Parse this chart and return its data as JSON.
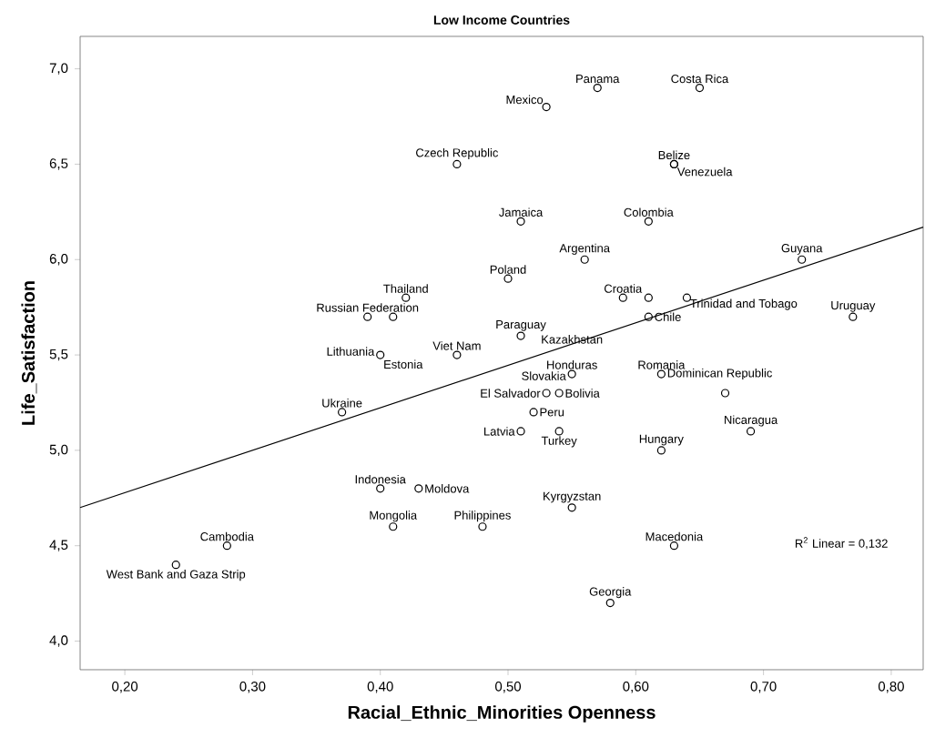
{
  "chart_data": {
    "type": "scatter",
    "title": "Low Income Countries",
    "xlabel": "Racial_Ethnic_Minorities Openness",
    "ylabel": "Life_Satisfaction",
    "xlim": [
      0.165,
      0.825
    ],
    "ylim": [
      3.85,
      7.17
    ],
    "xticks": [
      {
        "value": 0.2,
        "label": "0,20"
      },
      {
        "value": 0.3,
        "label": "0,30"
      },
      {
        "value": 0.4,
        "label": "0,40"
      },
      {
        "value": 0.5,
        "label": "0,50"
      },
      {
        "value": 0.6,
        "label": "0,60"
      },
      {
        "value": 0.7,
        "label": "0,70"
      },
      {
        "value": 0.8,
        "label": "0,80"
      }
    ],
    "yticks": [
      {
        "value": 4.0,
        "label": "4,0"
      },
      {
        "value": 4.5,
        "label": "4,5"
      },
      {
        "value": 5.0,
        "label": "5,0"
      },
      {
        "value": 5.5,
        "label": "5,5"
      },
      {
        "value": 6.0,
        "label": "6,0"
      },
      {
        "value": 6.5,
        "label": "6,5"
      },
      {
        "value": 7.0,
        "label": "7,0"
      }
    ],
    "series": [
      {
        "type": "scatter",
        "color": "#000000",
        "marker": "circle",
        "x": [
          0.57,
          0.65,
          0.53,
          0.46,
          0.63,
          0.63,
          0.51,
          0.61,
          0.56,
          0.5,
          0.73,
          0.59,
          0.61,
          0.64,
          0.61,
          0.77,
          0.42,
          0.39,
          0.41,
          0.4,
          0.46,
          0.51,
          0.55,
          0.62,
          0.67,
          0.53,
          0.54,
          0.52,
          0.51,
          0.54,
          0.62,
          0.69,
          0.37,
          0.4,
          0.43,
          0.41,
          0.48,
          0.55,
          0.63,
          0.58,
          0.28,
          0.24
        ],
        "values": [
          6.9,
          6.9,
          6.8,
          6.5,
          6.5,
          6.5,
          6.2,
          6.2,
          6.0,
          5.9,
          6.0,
          5.8,
          5.8,
          5.8,
          5.7,
          5.7,
          5.8,
          5.7,
          5.7,
          5.5,
          5.5,
          5.6,
          5.4,
          5.4,
          5.3,
          5.3,
          5.3,
          5.2,
          5.1,
          5.1,
          5.0,
          5.1,
          5.2,
          4.8,
          4.8,
          4.6,
          4.6,
          4.7,
          4.5,
          4.2,
          4.5,
          4.4
        ]
      },
      {
        "type": "line",
        "color": "#000000",
        "marker": "none",
        "x": [
          0.165,
          0.825
        ],
        "values": [
          4.7,
          6.17
        ]
      }
    ],
    "annotations": [
      {
        "text": "Panama",
        "x": 0.57,
        "y": 6.9
      },
      {
        "text": "Costa Rica",
        "x": 0.65,
        "y": 6.9
      },
      {
        "text": "Mexico",
        "x": 0.53,
        "y": 6.8
      },
      {
        "text": "Czech Republic",
        "x": 0.46,
        "y": 6.5
      },
      {
        "text": "Belize",
        "x": 0.63,
        "y": 6.5
      },
      {
        "text": "Venezuela",
        "x": 0.63,
        "y": 6.5
      },
      {
        "text": "Jamaica",
        "x": 0.51,
        "y": 6.2
      },
      {
        "text": "Colombia",
        "x": 0.61,
        "y": 6.2
      },
      {
        "text": "Argentina",
        "x": 0.56,
        "y": 6.0
      },
      {
        "text": "Poland",
        "x": 0.5,
        "y": 5.9
      },
      {
        "text": "Guyana",
        "x": 0.73,
        "y": 6.0
      },
      {
        "text": "Croatia",
        "x": 0.59,
        "y": 5.8
      },
      {
        "text": "Trinidad and Tobago",
        "x": 0.64,
        "y": 5.8
      },
      {
        "text": "Chile",
        "x": 0.61,
        "y": 5.7
      },
      {
        "text": "Uruguay",
        "x": 0.77,
        "y": 5.7
      },
      {
        "text": "Thailand",
        "x": 0.42,
        "y": 5.8
      },
      {
        "text": "Russian Federation",
        "x": 0.39,
        "y": 5.7
      },
      {
        "text": "Lithuania",
        "x": 0.4,
        "y": 5.5
      },
      {
        "text": "Estonia",
        "x": 0.4,
        "y": 5.5
      },
      {
        "text": "Viet Nam",
        "x": 0.46,
        "y": 5.5
      },
      {
        "text": "Paraguay",
        "x": 0.51,
        "y": 5.6
      },
      {
        "text": "Kazakhstan",
        "x": 0.55,
        "y": 5.4
      },
      {
        "text": "Honduras",
        "x": 0.55,
        "y": 5.4
      },
      {
        "text": "Slovakia",
        "x": 0.55,
        "y": 5.4
      },
      {
        "text": "Romania",
        "x": 0.62,
        "y": 5.4
      },
      {
        "text": "Dominican Republic",
        "x": 0.62,
        "y": 5.4
      },
      {
        "text": "El Salvador",
        "x": 0.53,
        "y": 5.3
      },
      {
        "text": "Bolivia",
        "x": 0.54,
        "y": 5.3
      },
      {
        "text": "Peru",
        "x": 0.52,
        "y": 5.2
      },
      {
        "text": "Latvia",
        "x": 0.51,
        "y": 5.1
      },
      {
        "text": "Turkey",
        "x": 0.54,
        "y": 5.1
      },
      {
        "text": "Hungary",
        "x": 0.62,
        "y": 5.0
      },
      {
        "text": "Nicaragua",
        "x": 0.69,
        "y": 5.1
      },
      {
        "text": "Ukraine",
        "x": 0.37,
        "y": 5.2
      },
      {
        "text": "Indonesia",
        "x": 0.4,
        "y": 4.8
      },
      {
        "text": "Moldova",
        "x": 0.43,
        "y": 4.8
      },
      {
        "text": "Mongolia",
        "x": 0.41,
        "y": 4.6
      },
      {
        "text": "Philippines",
        "x": 0.48,
        "y": 4.6
      },
      {
        "text": "Kyrgyzstan",
        "x": 0.55,
        "y": 4.7
      },
      {
        "text": "Macedonia",
        "x": 0.63,
        "y": 4.5
      },
      {
        "text": "Georgia",
        "x": 0.58,
        "y": 4.2
      },
      {
        "text": "Cambodia",
        "x": 0.28,
        "y": 4.5
      },
      {
        "text": "West Bank and Gaza Strip",
        "x": 0.24,
        "y": 4.4
      },
      "R$^{2}$ Linear = 0,132"
    ]
  }
}
